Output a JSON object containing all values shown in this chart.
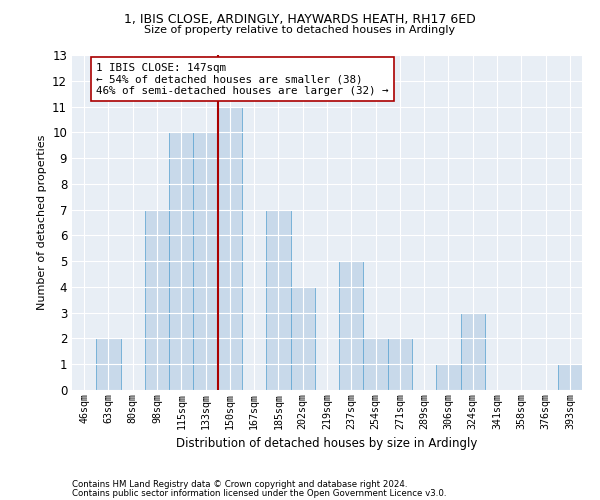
{
  "title1": "1, IBIS CLOSE, ARDINGLY, HAYWARDS HEATH, RH17 6ED",
  "title2": "Size of property relative to detached houses in Ardingly",
  "xlabel": "Distribution of detached houses by size in Ardingly",
  "ylabel": "Number of detached properties",
  "categories": [
    "46sqm",
    "63sqm",
    "80sqm",
    "98sqm",
    "115sqm",
    "133sqm",
    "150sqm",
    "167sqm",
    "185sqm",
    "202sqm",
    "219sqm",
    "237sqm",
    "254sqm",
    "271sqm",
    "289sqm",
    "306sqm",
    "324sqm",
    "341sqm",
    "358sqm",
    "376sqm",
    "393sqm"
  ],
  "values": [
    0,
    2,
    0,
    7,
    10,
    10,
    11,
    0,
    7,
    4,
    0,
    5,
    2,
    2,
    0,
    1,
    3,
    0,
    0,
    0,
    1
  ],
  "bar_color": "#c8d9ea",
  "bar_edge_color": "#6aaad4",
  "vline_x_index": 6,
  "vline_color": "#aa0000",
  "annotation_text": "1 IBIS CLOSE: 147sqm\n← 54% of detached houses are smaller (38)\n46% of semi-detached houses are larger (32) →",
  "annotation_box_color": "#ffffff",
  "annotation_box_edge": "#aa0000",
  "ylim": [
    0,
    13
  ],
  "yticks": [
    0,
    1,
    2,
    3,
    4,
    5,
    6,
    7,
    8,
    9,
    10,
    11,
    12,
    13
  ],
  "footer1": "Contains HM Land Registry data © Crown copyright and database right 2024.",
  "footer2": "Contains public sector information licensed under the Open Government Licence v3.0.",
  "bg_color": "#ffffff",
  "plot_bg_color": "#e8eef5"
}
